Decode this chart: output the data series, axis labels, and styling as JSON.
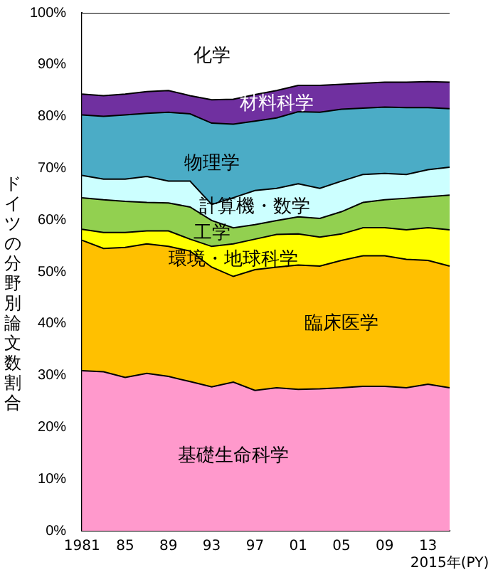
{
  "chart_data": {
    "type": "area",
    "stacked": true,
    "ylabel": "ドイツの分野別論文数割合",
    "categories": [
      "1981",
      null,
      "85",
      null,
      "89",
      null,
      "93",
      null,
      "97",
      null,
      "01",
      null,
      "05",
      null,
      "09",
      null,
      "13",
      "2015年(PY)"
    ],
    "series": [
      {
        "name": "基礎生命科学",
        "color": "#ff99cc",
        "values": [
          30.9,
          30.7,
          29.6,
          30.4,
          29.8,
          28.8,
          27.8,
          28.7,
          27.1,
          27.6,
          27.3,
          27.4,
          27.6,
          27.9,
          27.9,
          27.6,
          28.3,
          27.6
        ]
      },
      {
        "name": "臨床医学",
        "color": "#ffc000",
        "values": [
          25.2,
          23.8,
          25.1,
          25.0,
          25.1,
          25.2,
          23.1,
          20.4,
          23.3,
          23.3,
          24.0,
          23.7,
          24.6,
          25.2,
          25.2,
          24.8,
          23.9,
          23.5
        ]
      },
      {
        "name": "環境・地球科学",
        "color": "#ffff00",
        "values": [
          2.1,
          3.1,
          2.9,
          2.5,
          3.0,
          2.3,
          4.0,
          6.3,
          5.9,
          6.3,
          6.0,
          5.6,
          5.1,
          5.4,
          5.4,
          5.7,
          6.3,
          7.0
        ]
      },
      {
        "name": "工学",
        "color": "#92d050",
        "values": [
          6.1,
          6.3,
          6.0,
          5.5,
          5.4,
          6.2,
          5.0,
          3.1,
          2.8,
          2.7,
          3.3,
          3.6,
          4.3,
          4.9,
          5.4,
          6.1,
          6.0,
          6.7
        ]
      },
      {
        "name": "計算機・数学",
        "color": "#ccffff",
        "values": [
          4.3,
          4.0,
          4.3,
          5.0,
          4.2,
          5.0,
          3.1,
          5.8,
          6.6,
          6.2,
          6.4,
          5.8,
          5.9,
          5.4,
          5.1,
          4.6,
          5.2,
          5.4
        ]
      },
      {
        "name": "物理学",
        "color": "#4bacc6",
        "values": [
          11.7,
          12.1,
          12.4,
          12.2,
          13.3,
          13.0,
          15.7,
          14.2,
          13.4,
          13.6,
          13.9,
          14.7,
          13.9,
          12.8,
          12.8,
          12.9,
          12.0,
          11.3
        ]
      },
      {
        "name": "材料科学",
        "color": "#7030a0",
        "values": [
          4.0,
          4.0,
          4.0,
          4.2,
          4.2,
          3.5,
          4.5,
          4.8,
          5.1,
          5.3,
          5.1,
          5.2,
          4.8,
          4.8,
          4.8,
          4.9,
          5.0,
          5.1
        ]
      },
      {
        "name": "化学",
        "color": "#ffffff",
        "values": [
          15.7,
          16.0,
          15.7,
          15.2,
          15.0,
          16.0,
          16.8,
          16.7,
          15.8,
          15.0,
          14.0,
          14.0,
          13.8,
          13.6,
          13.4,
          13.4,
          13.3,
          13.4
        ]
      }
    ],
    "ylim": [
      0,
      100
    ],
    "yticks": [
      {
        "value": 0,
        "label": "0%"
      },
      {
        "value": 10,
        "label": "10%"
      },
      {
        "value": 20,
        "label": "20%"
      },
      {
        "value": 30,
        "label": "30%"
      },
      {
        "value": 40,
        "label": "40%"
      },
      {
        "value": 50,
        "label": "50%"
      },
      {
        "value": 60,
        "label": "60%"
      },
      {
        "value": 70,
        "label": "70%"
      },
      {
        "value": 80,
        "label": "80%"
      },
      {
        "value": 90,
        "label": "90%"
      },
      {
        "value": 100,
        "label": "100%"
      }
    ],
    "grid": false,
    "legend": false
  }
}
